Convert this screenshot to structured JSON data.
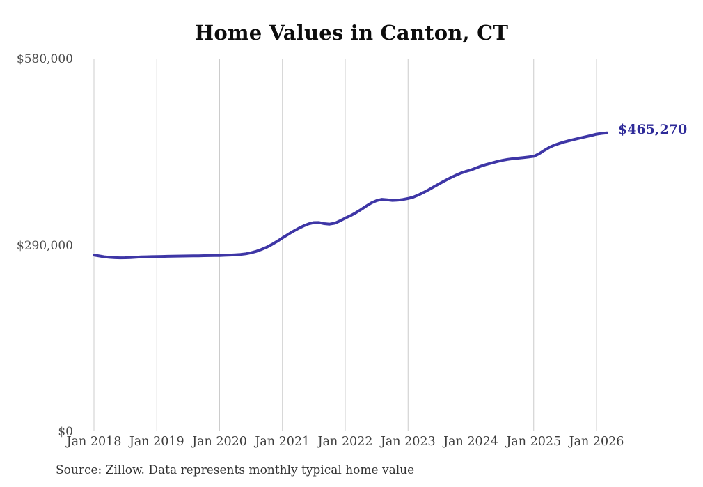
{
  "chart_data": {
    "type": "line",
    "title": "Home Values in Canton, CT",
    "series_name": "Monthly typical home value",
    "end_label": "$465,270",
    "line_color": "#3e36a6",
    "end_label_color": "#2e2a99",
    "grid_color": "#cccccc",
    "grid": "vertical-only",
    "legend_position": "none",
    "ylim": [
      0,
      580000
    ],
    "y_tick_labels": [
      {
        "label": "$580,000",
        "value": 580000
      },
      {
        "label": "$290,000",
        "value": 290000
      },
      {
        "label": "$0",
        "value": 0
      }
    ],
    "x_tick_labels": [
      "Jan 2018",
      "Jan 2019",
      "Jan 2020",
      "Jan 2021",
      "Jan 2022",
      "Jan 2023",
      "Jan 2024",
      "Jan 2025",
      "Jan 2026"
    ],
    "x": [
      "2018-01",
      "2018-02",
      "2018-03",
      "2018-04",
      "2018-05",
      "2018-06",
      "2018-07",
      "2018-08",
      "2018-09",
      "2018-10",
      "2018-11",
      "2018-12",
      "2019-01",
      "2019-02",
      "2019-03",
      "2019-04",
      "2019-05",
      "2019-06",
      "2019-07",
      "2019-08",
      "2019-09",
      "2019-10",
      "2019-11",
      "2019-12",
      "2020-01",
      "2020-02",
      "2020-03",
      "2020-04",
      "2020-05",
      "2020-06",
      "2020-07",
      "2020-08",
      "2020-09",
      "2020-10",
      "2020-11",
      "2020-12",
      "2021-01",
      "2021-02",
      "2021-03",
      "2021-04",
      "2021-05",
      "2021-06",
      "2021-07",
      "2021-08",
      "2021-09",
      "2021-10",
      "2021-11",
      "2021-12",
      "2022-01",
      "2022-02",
      "2022-03",
      "2022-04",
      "2022-05",
      "2022-06",
      "2022-07",
      "2022-08",
      "2022-09",
      "2022-10",
      "2022-11",
      "2022-12",
      "2023-01",
      "2023-02",
      "2023-03",
      "2023-04",
      "2023-05",
      "2023-06",
      "2023-07",
      "2023-08",
      "2023-09",
      "2023-10",
      "2023-11",
      "2023-12",
      "2024-01",
      "2024-02",
      "2024-03",
      "2024-04",
      "2024-05",
      "2024-06",
      "2024-07",
      "2024-08",
      "2024-09",
      "2024-10",
      "2024-11",
      "2024-12",
      "2025-01",
      "2025-02",
      "2025-03",
      "2025-04",
      "2025-05",
      "2025-06",
      "2025-07",
      "2025-08",
      "2025-09",
      "2025-10",
      "2025-11",
      "2025-12",
      "2026-01",
      "2026-02",
      "2026-03"
    ],
    "values": [
      275300,
      273800,
      272600,
      271700,
      271100,
      270900,
      271000,
      271400,
      271900,
      272300,
      272600,
      272800,
      272900,
      273100,
      273300,
      273400,
      273600,
      273700,
      273900,
      274000,
      274100,
      274300,
      274400,
      274500,
      274600,
      274900,
      275300,
      275700,
      276200,
      277200,
      278800,
      281000,
      284000,
      287500,
      291800,
      296600,
      302000,
      307000,
      312000,
      316500,
      320500,
      323800,
      325800,
      325900,
      324200,
      323400,
      324800,
      328500,
      332700,
      336500,
      341000,
      346000,
      351500,
      356500,
      360000,
      362000,
      361200,
      360400,
      360700,
      361800,
      363300,
      365500,
      368800,
      372800,
      377200,
      381800,
      386400,
      390800,
      395000,
      399000,
      402500,
      405300,
      407600,
      410800,
      413800,
      416400,
      418600,
      420700,
      422600,
      424100,
      425200,
      426100,
      426900,
      427800,
      428900,
      432800,
      438000,
      442800,
      446400,
      449200,
      451600,
      453700,
      455700,
      457600,
      459400,
      461300,
      463400,
      464500,
      465270
    ]
  },
  "source_note": "Source: Zillow. Data represents monthly typical home value"
}
